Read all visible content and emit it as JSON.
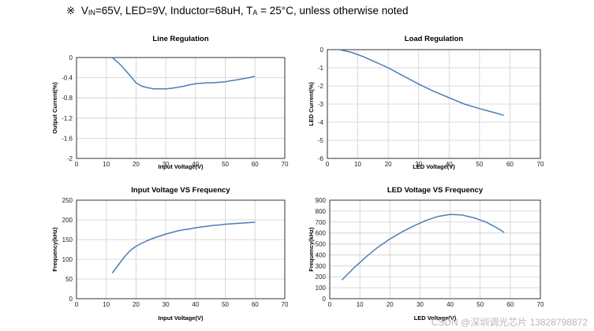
{
  "header": {
    "symbol": "※",
    "parts": [
      "V",
      "IN",
      "=65V, LED=9V, Inductor=68uH, T",
      "A",
      " = 25°C, unless otherwise noted"
    ]
  },
  "watermark": "CSDN @深圳调光芯片 13828798872",
  "chart_data": [
    {
      "type": "line",
      "title": "Line Regulation",
      "xlabel": "Input Voltage(V)",
      "ylabel": "Output Current(%)",
      "xlim": [
        0,
        70
      ],
      "ylim": [
        -2,
        0
      ],
      "xticks": [
        "0",
        "10",
        "20",
        "30",
        "40",
        "50",
        "60",
        "70"
      ],
      "yticks": [
        "0",
        "-0.4",
        "-0.8",
        "-1.2",
        "-1.6",
        "-2"
      ],
      "color": "#4a7eb8",
      "grid": true,
      "x": [
        12,
        14,
        16,
        18,
        20,
        22,
        24,
        26,
        28,
        30,
        32,
        34,
        36,
        38,
        40,
        42,
        44,
        46,
        48,
        50,
        52,
        54,
        56,
        58,
        60
      ],
      "y": [
        0,
        -0.1,
        -0.22,
        -0.36,
        -0.5,
        -0.57,
        -0.6,
        -0.62,
        -0.62,
        -0.62,
        -0.61,
        -0.59,
        -0.57,
        -0.54,
        -0.52,
        -0.51,
        -0.5,
        -0.5,
        -0.49,
        -0.48,
        -0.46,
        -0.44,
        -0.42,
        -0.4,
        -0.37
      ]
    },
    {
      "type": "line",
      "title": "Load Regulation",
      "xlabel": "LED Voltage(V)",
      "ylabel": "LED Current(%)",
      "xlim": [
        0,
        70
      ],
      "ylim": [
        -6,
        0
      ],
      "xticks": [
        "0",
        "10",
        "20",
        "30",
        "40",
        "50",
        "60",
        "70"
      ],
      "yticks": [
        "0",
        "-1",
        "-2",
        "-3",
        "-4",
        "-5",
        "-6"
      ],
      "color": "#4a7eb8",
      "grid": true,
      "x": [
        4,
        8,
        12,
        16,
        20,
        25,
        30,
        35,
        40,
        45,
        50,
        55,
        58
      ],
      "y": [
        0,
        -0.15,
        -0.4,
        -0.7,
        -1.0,
        -1.45,
        -1.9,
        -2.3,
        -2.65,
        -3.0,
        -3.25,
        -3.48,
        -3.62
      ]
    },
    {
      "type": "line",
      "title": "Input Voltage VS Frequency",
      "xlabel": "Input Voltage(V)",
      "ylabel": "Frequency(kHz)",
      "xlim": [
        0,
        70
      ],
      "ylim": [
        0,
        250
      ],
      "xticks": [
        "0",
        "10",
        "20",
        "30",
        "40",
        "50",
        "60",
        "70"
      ],
      "yticks": [
        "250",
        "200",
        "150",
        "100",
        "50",
        "0"
      ],
      "color": "#4a7eb8",
      "grid": true,
      "x": [
        12,
        14,
        16,
        18,
        20,
        22,
        24,
        26,
        28,
        30,
        32,
        34,
        36,
        38,
        40,
        42,
        44,
        46,
        48,
        50,
        52,
        54,
        56,
        58,
        60
      ],
      "y": [
        65,
        85,
        105,
        122,
        133,
        141,
        148,
        154,
        159,
        164,
        168,
        172,
        175,
        177,
        180,
        182,
        184,
        186,
        187,
        189,
        190,
        191,
        192,
        193,
        194
      ]
    },
    {
      "type": "line",
      "title": "LED Voltage VS Frequency",
      "xlabel": "LED Voltage(V)",
      "ylabel": "Frequency(kHz)",
      "xlim": [
        0,
        70
      ],
      "ylim": [
        0,
        900
      ],
      "xticks": [
        "0",
        "10",
        "20",
        "30",
        "40",
        "50",
        "60",
        "70"
      ],
      "yticks": [
        "900",
        "800",
        "700",
        "600",
        "500",
        "400",
        "300",
        "200",
        "100",
        "0"
      ],
      "color": "#4a7eb8",
      "grid": true,
      "x": [
        4,
        8,
        12,
        16,
        20,
        24,
        28,
        32,
        36,
        40,
        44,
        48,
        52,
        56,
        58
      ],
      "y": [
        170,
        280,
        380,
        470,
        545,
        610,
        665,
        715,
        752,
        770,
        765,
        738,
        700,
        640,
        605
      ]
    }
  ]
}
